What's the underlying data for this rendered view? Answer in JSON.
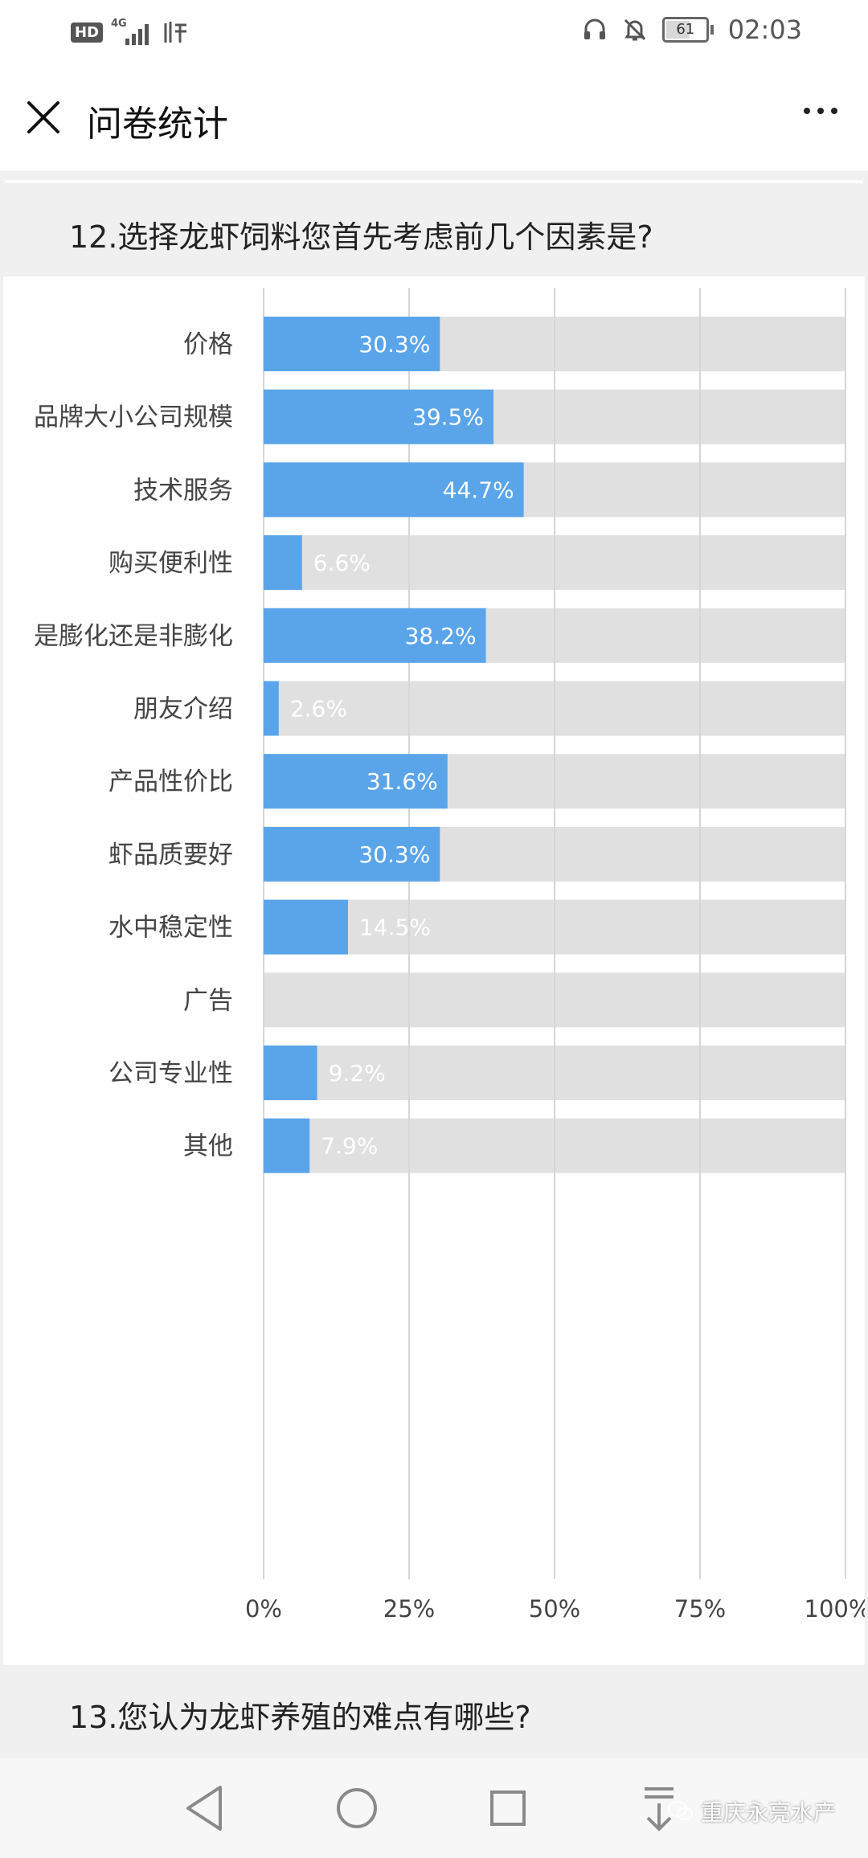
{
  "status_bar": {
    "left_badge": "HD",
    "network": "4G",
    "time": "02:03",
    "battery": "61",
    "battery_level": 0.61
  },
  "app_bar": {
    "title": "问卷统计"
  },
  "question_12": {
    "title": "12.选择龙虾饲料您首先考虑前几个因素是?"
  },
  "chart_data": {
    "type": "bar",
    "orientation": "horizontal",
    "categories": [
      "价格",
      "品牌大小公司规模",
      "技术服务",
      "购买便利性",
      "是膨化还是非膨化",
      "朋友介绍",
      "产品性价比",
      "虾品质要好",
      "水中稳定性",
      "广告",
      "公司专业性",
      "其他"
    ],
    "values": [
      30.3,
      39.5,
      44.7,
      6.6,
      38.2,
      2.6,
      31.6,
      30.3,
      14.5,
      0,
      9.2,
      7.9
    ],
    "labels": [
      "30.3%",
      "39.5%",
      "44.7%",
      "6.6%",
      "38.2%",
      "2.6%",
      "31.6%",
      "30.3%",
      "14.5%",
      "",
      "9.2%",
      "7.9%"
    ],
    "xlim": [
      0,
      100
    ],
    "x_ticks": [
      "0%",
      "25%",
      "50%",
      "75%",
      "100%"
    ],
    "grid": true,
    "bar_color": "#5aa5ea",
    "track_color": "#e0e0e0",
    "gridline_color": "#d6d6d6"
  },
  "question_13": {
    "title": "13.您认为龙虾养殖的难点有哪些?"
  },
  "nav_bar": {
    "watermark": "重庆永亮水产"
  }
}
